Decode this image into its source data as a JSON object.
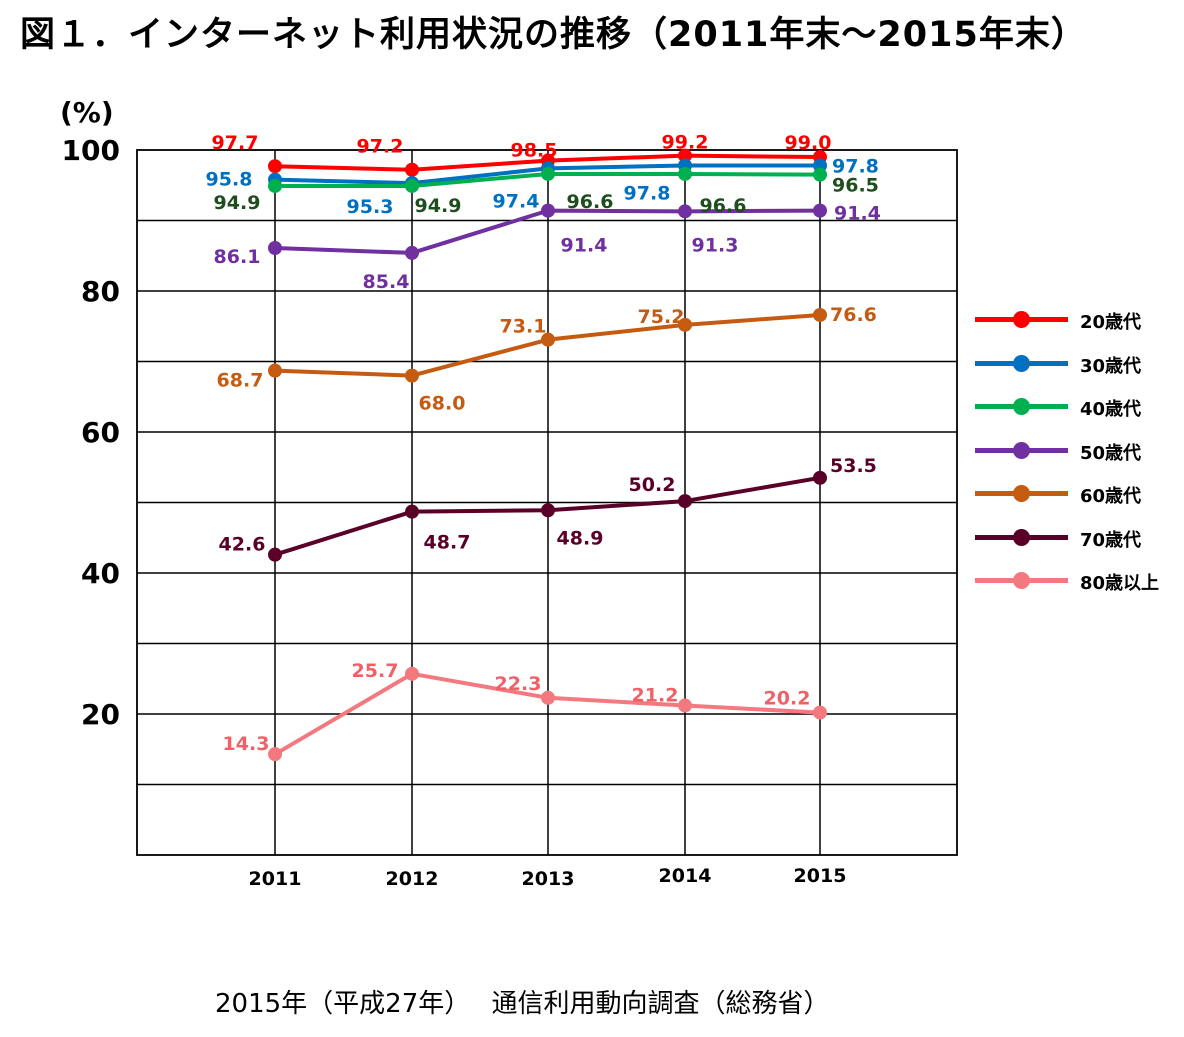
{
  "title": "図１．インターネット利用状況の推移（2011年末～2015年末）",
  "unit_label": "(%)",
  "source": "2015年（平成27年）　 通信利用動向調査（総務省）",
  "chart_data": {
    "type": "line",
    "x": [
      "2011",
      "2012",
      "2013",
      "2014",
      "2015"
    ],
    "ylim": [
      0,
      100
    ],
    "y_ticks": [
      "20",
      "40",
      "60",
      "80",
      "100"
    ],
    "grid": true,
    "legend_position": "right",
    "series": [
      {
        "name": "20歳代",
        "color": "#ff0000",
        "values": [
          97.7,
          97.2,
          98.5,
          99.2,
          99.0
        ]
      },
      {
        "name": "30歳代",
        "color": "#0070c0",
        "values": [
          95.8,
          95.3,
          97.4,
          97.8,
          97.8
        ]
      },
      {
        "name": "40歳代",
        "color": "#00b050",
        "values": [
          94.9,
          94.9,
          96.6,
          96.6,
          96.5
        ]
      },
      {
        "name": "50歳代",
        "color": "#7030a0",
        "values": [
          86.1,
          85.4,
          91.4,
          91.3,
          91.4
        ]
      },
      {
        "name": "60歳代",
        "color": "#c55a11",
        "values": [
          68.7,
          68.0,
          73.1,
          75.2,
          76.6
        ]
      },
      {
        "name": "70歳代",
        "color": "#5a0028",
        "values": [
          42.6,
          48.7,
          48.9,
          50.2,
          53.5
        ]
      },
      {
        "name": "80歳以上",
        "color": "#f4797f",
        "values": [
          14.3,
          25.7,
          22.3,
          21.2,
          20.2
        ]
      }
    ],
    "data_label_colors": [
      "#ff0000",
      "#0070c0",
      "#1e4d1e",
      "#7030a0",
      "#c55a11",
      "#5a0028",
      "#f06067"
    ]
  }
}
